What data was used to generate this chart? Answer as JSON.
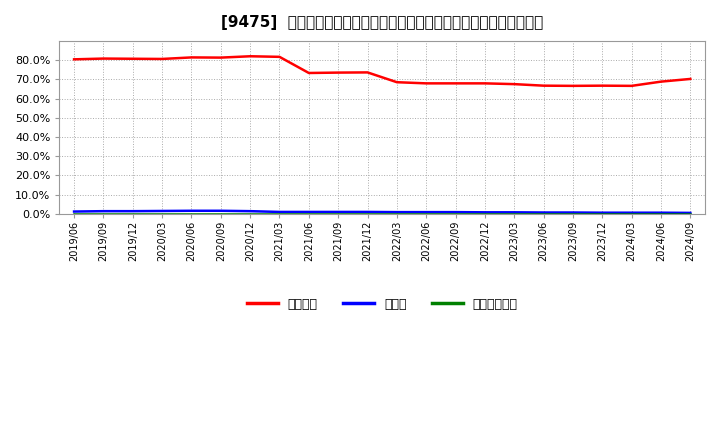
{
  "title": "[9475]  自己資本、のれん、繰延税金資産の総資産に対する比率の推移",
  "x_labels": [
    "2019/06",
    "2019/09",
    "2019/12",
    "2020/03",
    "2020/06",
    "2020/09",
    "2020/12",
    "2021/03",
    "2021/06",
    "2021/09",
    "2021/12",
    "2022/03",
    "2022/06",
    "2022/09",
    "2022/12",
    "2023/03",
    "2023/06",
    "2023/09",
    "2023/12",
    "2024/03",
    "2024/06",
    "2024/09"
  ],
  "equity_ratio": [
    0.804,
    0.808,
    0.807,
    0.806,
    0.814,
    0.813,
    0.82,
    0.817,
    0.733,
    0.735,
    0.736,
    0.685,
    0.679,
    0.679,
    0.679,
    0.675,
    0.667,
    0.666,
    0.667,
    0.666,
    0.688,
    0.702
  ],
  "goodwill_ratio": [
    0.012,
    0.014,
    0.014,
    0.015,
    0.016,
    0.016,
    0.014,
    0.01,
    0.01,
    0.01,
    0.01,
    0.009,
    0.009,
    0.009,
    0.008,
    0.008,
    0.007,
    0.007,
    0.006,
    0.006,
    0.006,
    0.005
  ],
  "deferred_tax_ratio": [
    0.001,
    0.001,
    0.001,
    0.001,
    0.001,
    0.001,
    0.001,
    0.001,
    0.001,
    0.001,
    0.001,
    0.001,
    0.001,
    0.001,
    0.001,
    0.001,
    0.001,
    0.001,
    0.001,
    0.001,
    0.001,
    0.001
  ],
  "equity_color": "#ff0000",
  "goodwill_color": "#0000ff",
  "deferred_tax_color": "#008000",
  "bg_color": "#ffffff",
  "plot_bg_color": "#ffffff",
  "grid_color": "#aaaaaa",
  "legend_labels": [
    "自己資本",
    "のれん",
    "繰延税金資産"
  ],
  "ylim": [
    0.0,
    0.9
  ],
  "yticks": [
    0.0,
    0.1,
    0.2,
    0.3,
    0.4,
    0.5,
    0.6,
    0.7,
    0.8
  ]
}
